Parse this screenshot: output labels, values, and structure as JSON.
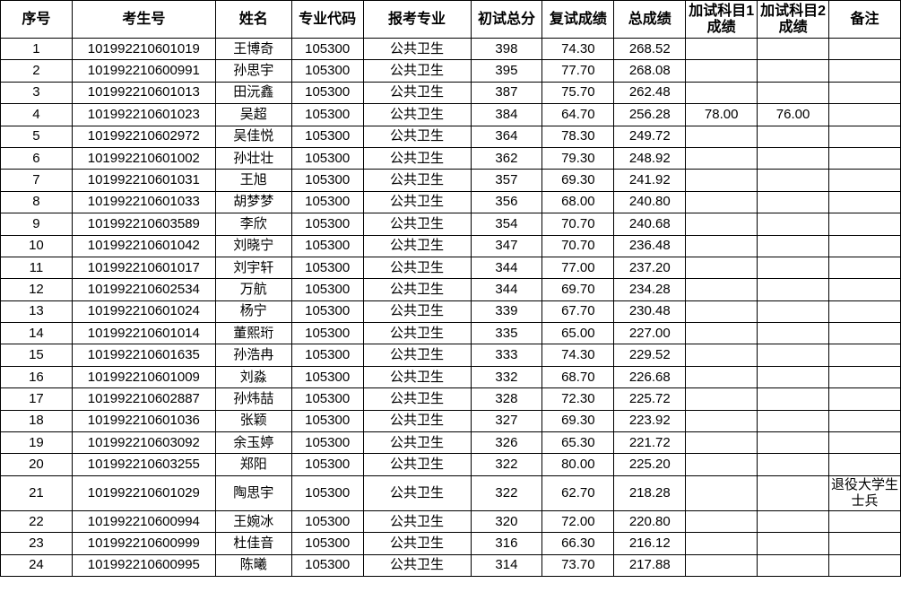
{
  "headers": [
    "序号",
    "考生号",
    "姓名",
    "专业代码",
    "报考专业",
    "初试总分",
    "复试成绩",
    "总成绩",
    "加试科目1成绩",
    "加试科目2成绩",
    "备注"
  ],
  "rows": [
    [
      "1",
      "101992210601019",
      "王博奇",
      "105300",
      "公共卫生",
      "398",
      "74.30",
      "268.52",
      "",
      "",
      ""
    ],
    [
      "2",
      "101992210600991",
      "孙思宇",
      "105300",
      "公共卫生",
      "395",
      "77.70",
      "268.08",
      "",
      "",
      ""
    ],
    [
      "3",
      "101992210601013",
      "田沅鑫",
      "105300",
      "公共卫生",
      "387",
      "75.70",
      "262.48",
      "",
      "",
      ""
    ],
    [
      "4",
      "101992210601023",
      "吴超",
      "105300",
      "公共卫生",
      "384",
      "64.70",
      "256.28",
      "78.00",
      "76.00",
      ""
    ],
    [
      "5",
      "101992210602972",
      "吴佳悦",
      "105300",
      "公共卫生",
      "364",
      "78.30",
      "249.72",
      "",
      "",
      ""
    ],
    [
      "6",
      "101992210601002",
      "孙壮壮",
      "105300",
      "公共卫生",
      "362",
      "79.30",
      "248.92",
      "",
      "",
      ""
    ],
    [
      "7",
      "101992210601031",
      "王旭",
      "105300",
      "公共卫生",
      "357",
      "69.30",
      "241.92",
      "",
      "",
      ""
    ],
    [
      "8",
      "101992210601033",
      "胡梦梦",
      "105300",
      "公共卫生",
      "356",
      "68.00",
      "240.80",
      "",
      "",
      ""
    ],
    [
      "9",
      "101992210603589",
      "李欣",
      "105300",
      "公共卫生",
      "354",
      "70.70",
      "240.68",
      "",
      "",
      ""
    ],
    [
      "10",
      "101992210601042",
      "刘晓宁",
      "105300",
      "公共卫生",
      "347",
      "70.70",
      "236.48",
      "",
      "",
      ""
    ],
    [
      "11",
      "101992210601017",
      "刘宇轩",
      "105300",
      "公共卫生",
      "344",
      "77.00",
      "237.20",
      "",
      "",
      ""
    ],
    [
      "12",
      "101992210602534",
      "万航",
      "105300",
      "公共卫生",
      "344",
      "69.70",
      "234.28",
      "",
      "",
      ""
    ],
    [
      "13",
      "101992210601024",
      "杨宁",
      "105300",
      "公共卫生",
      "339",
      "67.70",
      "230.48",
      "",
      "",
      ""
    ],
    [
      "14",
      "101992210601014",
      "董熙珩",
      "105300",
      "公共卫生",
      "335",
      "65.00",
      "227.00",
      "",
      "",
      ""
    ],
    [
      "15",
      "101992210601635",
      "孙浩冉",
      "105300",
      "公共卫生",
      "333",
      "74.30",
      "229.52",
      "",
      "",
      ""
    ],
    [
      "16",
      "101992210601009",
      "刘淼",
      "105300",
      "公共卫生",
      "332",
      "68.70",
      "226.68",
      "",
      "",
      ""
    ],
    [
      "17",
      "101992210602887",
      "孙炜喆",
      "105300",
      "公共卫生",
      "328",
      "72.30",
      "225.72",
      "",
      "",
      ""
    ],
    [
      "18",
      "101992210601036",
      "张颖",
      "105300",
      "公共卫生",
      "327",
      "69.30",
      "223.92",
      "",
      "",
      ""
    ],
    [
      "19",
      "101992210603092",
      "余玉婷",
      "105300",
      "公共卫生",
      "326",
      "65.30",
      "221.72",
      "",
      "",
      ""
    ],
    [
      "20",
      "101992210603255",
      "郑阳",
      "105300",
      "公共卫生",
      "322",
      "80.00",
      "225.20",
      "",
      "",
      ""
    ],
    [
      "21",
      "101992210601029",
      "陶思宇",
      "105300",
      "公共卫生",
      "322",
      "62.70",
      "218.28",
      "",
      "",
      "退役大学生士兵"
    ],
    [
      "22",
      "101992210600994",
      "王婉冰",
      "105300",
      "公共卫生",
      "320",
      "72.00",
      "220.80",
      "",
      "",
      ""
    ],
    [
      "23",
      "101992210600999",
      "杜佳音",
      "105300",
      "公共卫生",
      "316",
      "66.30",
      "216.12",
      "",
      "",
      ""
    ],
    [
      "24",
      "101992210600995",
      "陈曦",
      "105300",
      "公共卫生",
      "314",
      "73.70",
      "217.88",
      "",
      "",
      ""
    ]
  ]
}
